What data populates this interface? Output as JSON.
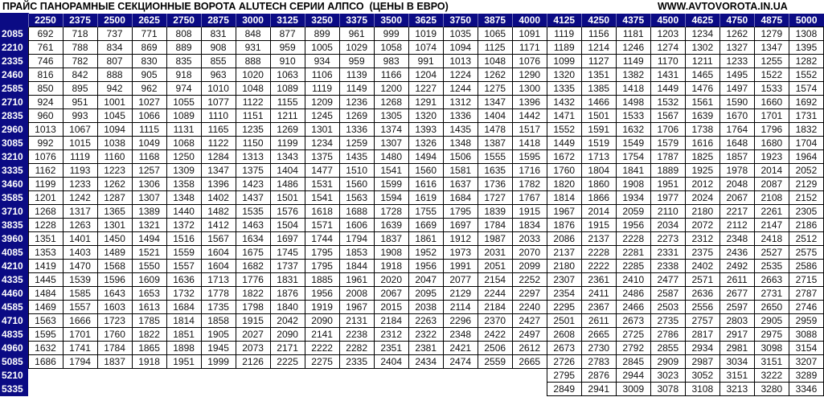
{
  "title": "ПРАЙС ПАНОРАМНЫЕ СЕКЦИОННЫЕ ВОРОТА ALUTECH СЕРИИ АЛПСО  (ЦЕНЫ В ЕВРО)",
  "website": "WWW.AVTOVOROTA.IN.UA",
  "colors": {
    "header_bg": "#0b0b84",
    "header_text": "#ffffff",
    "grid": "#000000"
  },
  "widths": [
    "2250",
    "2375",
    "2500",
    "2625",
    "2750",
    "2875",
    "3000",
    "3125",
    "3250",
    "3375",
    "3500",
    "3625",
    "3750",
    "3875",
    "4000",
    "4125",
    "4250",
    "4375",
    "4500",
    "4625",
    "4750",
    "4875",
    "5000"
  ],
  "rows": [
    {
      "height": "2085",
      "prices": [
        692,
        718,
        737,
        771,
        808,
        831,
        848,
        877,
        899,
        961,
        999,
        1019,
        1035,
        1065,
        1091,
        1119,
        1156,
        1181,
        1203,
        1234,
        1262,
        1279,
        1308
      ]
    },
    {
      "height": "2210",
      "prices": [
        761,
        788,
        834,
        869,
        889,
        908,
        931,
        959,
        1005,
        1029,
        1058,
        1074,
        1094,
        1125,
        1171,
        1189,
        1214,
        1246,
        1274,
        1302,
        1327,
        1347,
        1395
      ]
    },
    {
      "height": "2335",
      "prices": [
        746,
        782,
        807,
        830,
        835,
        855,
        888,
        910,
        934,
        959,
        983,
        991,
        1013,
        1048,
        1076,
        1099,
        1127,
        1149,
        1170,
        1211,
        1233,
        1255,
        1282
      ]
    },
    {
      "height": "2460",
      "prices": [
        816,
        842,
        888,
        905,
        918,
        963,
        1020,
        1063,
        1106,
        1139,
        1166,
        1204,
        1224,
        1262,
        1290,
        1320,
        1351,
        1382,
        1431,
        1465,
        1495,
        1522,
        1552
      ]
    },
    {
      "height": "2585",
      "prices": [
        850,
        895,
        942,
        962,
        974,
        1010,
        1048,
        1089,
        1119,
        1149,
        1200,
        1227,
        1244,
        1275,
        1300,
        1335,
        1385,
        1418,
        1449,
        1476,
        1497,
        1533,
        1574
      ]
    },
    {
      "height": "2710",
      "prices": [
        924,
        951,
        1001,
        1027,
        1055,
        1077,
        1122,
        1155,
        1209,
        1236,
        1268,
        1291,
        1312,
        1347,
        1396,
        1432,
        1466,
        1498,
        1532,
        1561,
        1590,
        1660,
        1692
      ]
    },
    {
      "height": "2835",
      "prices": [
        960,
        993,
        1045,
        1066,
        1089,
        1110,
        1151,
        1211,
        1245,
        1269,
        1305,
        1320,
        1336,
        1404,
        1442,
        1471,
        1501,
        1533,
        1567,
        1639,
        1670,
        1701,
        1731
      ]
    },
    {
      "height": "2960",
      "prices": [
        1013,
        1067,
        1094,
        1115,
        1131,
        1165,
        1235,
        1269,
        1301,
        1336,
        1374,
        1393,
        1435,
        1478,
        1517,
        1552,
        1591,
        1632,
        1706,
        1738,
        1764,
        1796,
        1832
      ]
    },
    {
      "height": "3085",
      "prices": [
        992,
        1015,
        1038,
        1049,
        1068,
        1122,
        1150,
        1199,
        1234,
        1259,
        1307,
        1326,
        1348,
        1387,
        1418,
        1449,
        1519,
        1549,
        1579,
        1616,
        1648,
        1680,
        1704
      ]
    },
    {
      "height": "3210",
      "prices": [
        1076,
        1119,
        1160,
        1168,
        1250,
        1284,
        1313,
        1343,
        1375,
        1435,
        1480,
        1494,
        1506,
        1555,
        1595,
        1672,
        1713,
        1754,
        1787,
        1825,
        1857,
        1923,
        1964
      ]
    },
    {
      "height": "3335",
      "prices": [
        1162,
        1193,
        1223,
        1257,
        1309,
        1347,
        1375,
        1404,
        1477,
        1510,
        1541,
        1560,
        1581,
        1635,
        1716,
        1760,
        1804,
        1841,
        1889,
        1925,
        1978,
        2014,
        2052
      ]
    },
    {
      "height": "3460",
      "prices": [
        1199,
        1233,
        1262,
        1306,
        1358,
        1396,
        1423,
        1486,
        1531,
        1560,
        1599,
        1616,
        1637,
        1736,
        1782,
        1820,
        1860,
        1908,
        1951,
        2012,
        2048,
        2087,
        2129
      ]
    },
    {
      "height": "3585",
      "prices": [
        1201,
        1242,
        1287,
        1307,
        1348,
        1402,
        1437,
        1501,
        1541,
        1563,
        1594,
        1619,
        1684,
        1727,
        1767,
        1814,
        1866,
        1934,
        1977,
        2024,
        2067,
        2108,
        2152
      ]
    },
    {
      "height": "3710",
      "prices": [
        1268,
        1317,
        1365,
        1389,
        1440,
        1482,
        1535,
        1576,
        1618,
        1688,
        1728,
        1755,
        1795,
        1839,
        1915,
        1967,
        2014,
        2059,
        2110,
        2180,
        2217,
        2261,
        2305
      ]
    },
    {
      "height": "3835",
      "prices": [
        1228,
        1263,
        1301,
        1321,
        1372,
        1412,
        1463,
        1504,
        1571,
        1606,
        1639,
        1669,
        1697,
        1784,
        1834,
        1876,
        1915,
        1956,
        2034,
        2072,
        2112,
        2147,
        2186
      ]
    },
    {
      "height": "3960",
      "prices": [
        1351,
        1401,
        1450,
        1494,
        1516,
        1567,
        1634,
        1697,
        1744,
        1794,
        1837,
        1861,
        1912,
        1987,
        2033,
        2086,
        2137,
        2228,
        2273,
        2312,
        2348,
        2418,
        2512
      ]
    },
    {
      "height": "4085",
      "prices": [
        1353,
        1403,
        1489,
        1521,
        1559,
        1604,
        1675,
        1745,
        1795,
        1853,
        1908,
        1952,
        1973,
        2031,
        2070,
        2137,
        2228,
        2281,
        2331,
        2375,
        2436,
        2527,
        2575
      ]
    },
    {
      "height": "4210",
      "prices": [
        1419,
        1470,
        1568,
        1550,
        1557,
        1604,
        1682,
        1737,
        1795,
        1844,
        1918,
        1956,
        1991,
        2051,
        2099,
        2180,
        2222,
        2285,
        2338,
        2402,
        2492,
        2535,
        2586
      ]
    },
    {
      "height": "4335",
      "prices": [
        1445,
        1539,
        1596,
        1609,
        1636,
        1713,
        1776,
        1831,
        1885,
        1961,
        2020,
        2047,
        2077,
        2154,
        2252,
        2307,
        2361,
        2410,
        2477,
        2571,
        2611,
        2663,
        2715
      ]
    },
    {
      "height": "4460",
      "prices": [
        1484,
        1585,
        1643,
        1653,
        1732,
        1778,
        1822,
        1876,
        1956,
        2008,
        2067,
        2095,
        2129,
        2244,
        2297,
        2354,
        2411,
        2486,
        2587,
        2636,
        2677,
        2731,
        2787
      ]
    },
    {
      "height": "4585",
      "prices": [
        1469,
        1557,
        1603,
        1613,
        1684,
        1735,
        1798,
        1840,
        1919,
        1967,
        2015,
        2038,
        2114,
        2184,
        2240,
        2295,
        2367,
        2466,
        2503,
        2556,
        2597,
        2650,
        2746
      ]
    },
    {
      "height": "4710",
      "prices": [
        1563,
        1666,
        1723,
        1785,
        1814,
        1858,
        1915,
        2042,
        2090,
        2131,
        2184,
        2263,
        2296,
        2370,
        2427,
        2501,
        2611,
        2673,
        2735,
        2757,
        2803,
        2905,
        2959
      ]
    },
    {
      "height": "4835",
      "prices": [
        1595,
        1701,
        1760,
        1822,
        1851,
        1905,
        2027,
        2090,
        2141,
        2238,
        2312,
        2322,
        2348,
        2422,
        2497,
        2608,
        2665,
        2725,
        2786,
        2817,
        2917,
        2975,
        3088
      ]
    },
    {
      "height": "4960",
      "prices": [
        1632,
        1741,
        1784,
        1865,
        1898,
        1945,
        2073,
        2171,
        2222,
        2282,
        2351,
        2381,
        2421,
        2506,
        2612,
        2673,
        2730,
        2792,
        2855,
        2934,
        2981,
        3098,
        3154
      ]
    },
    {
      "height": "5085",
      "prices": [
        1686,
        1794,
        1837,
        1918,
        1951,
        1999,
        2126,
        2225,
        2275,
        2335,
        2404,
        2434,
        2474,
        2559,
        2665,
        2726,
        2783,
        2845,
        2909,
        2987,
        3034,
        3151,
        3207
      ]
    },
    {
      "height": "5210",
      "prices": [
        null,
        null,
        null,
        null,
        null,
        null,
        null,
        null,
        null,
        null,
        null,
        null,
        null,
        null,
        null,
        2795,
        2876,
        2944,
        3023,
        3052,
        3151,
        3222,
        3289
      ]
    },
    {
      "height": "5335",
      "prices": [
        null,
        null,
        null,
        null,
        null,
        null,
        null,
        null,
        null,
        null,
        null,
        null,
        null,
        null,
        null,
        2849,
        2941,
        3009,
        3078,
        3108,
        3213,
        3280,
        3346
      ]
    }
  ]
}
